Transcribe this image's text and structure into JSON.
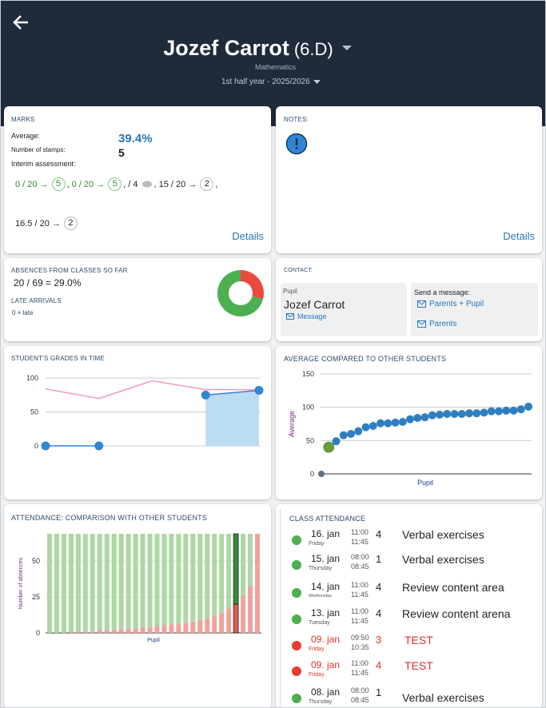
{
  "header": {
    "title": "Jozef Carrot",
    "class": "(6.D)",
    "subject": "Mathematics",
    "period": "1st half year - 2025/2026"
  },
  "marks": {
    "title": "MARKS",
    "average_label": "Average:",
    "average": "39.4%",
    "stamps_label": "Number of stamps:",
    "stamps": "5",
    "interim_label": "Interim assessment:",
    "separator": ",",
    "items": [
      {
        "score": "0 / 20 →",
        "grade": "5",
        "color": "#2e8b2e"
      },
      {
        "score": "0 / 20 →",
        "grade": "5",
        "color": "#2e8b2e"
      },
      {
        "score": "/ 4",
        "color": "#222"
      },
      {
        "score": "15 / 20 →",
        "grade": "2",
        "color": "#222"
      },
      {
        "score": "16.5 / 20 →",
        "grade": "2",
        "color": "#222"
      }
    ],
    "details": "Details"
  },
  "notes": {
    "title": "NOTES:",
    "details": "Details"
  },
  "absences": {
    "title": "ABSENCES FROM CLASSES SO FAR",
    "summary": "20 / 69 = 29.0%",
    "late_title": "LATE ARRIVALS",
    "late": "0 × late",
    "donut": {
      "type": "pie",
      "values": [
        20,
        49
      ],
      "colors": [
        "#ea4a3d",
        "#4caf50"
      ]
    }
  },
  "contact": {
    "title": "CONTACT:",
    "pupil_label": "Pupil",
    "pupil_name": "Jozef Carrot",
    "message": "Message",
    "send_label": "Send a message:",
    "parents_pupil": "Parents + Pupil",
    "parents": "Parents"
  },
  "grades_chart": {
    "type": "line",
    "title": "STUDENT'S GRADES IN TIME",
    "categories": [
      null,
      null,
      null,
      null,
      null
    ],
    "series": [
      {
        "color": "#f29cb8",
        "values": [
          84,
          70,
          96,
          83,
          83
        ]
      },
      {
        "color": "#2f86d6",
        "fill": "#bcdcf3",
        "values": [
          0,
          0,
          null,
          75,
          82
        ]
      }
    ],
    "ylim": [
      0,
      112
    ],
    "yticks": [
      0,
      50,
      100
    ],
    "grid": true
  },
  "average_chart": {
    "type": "scatter",
    "title": "AVERAGE COMPARED TO OTHER STUDENTS",
    "y_label": "Average",
    "x_label": "Pupil",
    "values": [
      0,
      40,
      49,
      58,
      60,
      64,
      70,
      72,
      76,
      76,
      77,
      78,
      82,
      84,
      85,
      88,
      89,
      90,
      90,
      90,
      91,
      91,
      92,
      94,
      94,
      95,
      95,
      97,
      101
    ],
    "colors": [
      "#5f7080",
      "#6a9a3a",
      "#2f7fc0",
      "#2f7fc0",
      "#2f7fc0",
      "#2f7fc0",
      "#2f7fc0",
      "#2f7fc0",
      "#2f7fc0",
      "#2f7fc0",
      "#2f7fc0",
      "#2f7fc0",
      "#2f7fc0",
      "#2f7fc0",
      "#2f7fc0",
      "#2f7fc0",
      "#2f7fc0",
      "#2f7fc0",
      "#2f7fc0",
      "#2f7fc0",
      "#2f7fc0",
      "#2f7fc0",
      "#2f7fc0",
      "#2f7fc0",
      "#2f7fc0",
      "#2f7fc0",
      "#2f7fc0",
      "#2f7fc0",
      "#2f7fc0"
    ],
    "ylim": [
      0,
      150
    ],
    "yticks": [
      0,
      50,
      100,
      150
    ],
    "grid": true
  },
  "attendance_chart": {
    "type": "bar",
    "stacked": true,
    "title": "ATTENDANCE: COMPARISON WITH OTHER STUDENTS",
    "y_label": "Number of absences",
    "x_label": "Pupil",
    "categories": [
      null,
      null,
      null,
      null,
      null,
      null,
      null,
      null,
      null,
      null,
      null,
      null,
      null,
      null,
      null,
      null,
      null,
      null,
      null,
      null,
      null,
      null,
      null,
      null,
      null,
      null,
      null,
      null,
      null,
      null
    ],
    "series": [
      {
        "color": "#eda39c",
        "values": [
          0,
          0,
          0,
          1,
          1,
          1,
          1,
          2,
          2,
          2,
          3,
          3,
          3,
          4,
          4,
          5,
          5,
          6,
          6,
          7,
          8,
          9,
          10,
          12,
          14,
          17,
          20,
          26,
          32,
          69
        ]
      },
      {
        "color": "#acd8a3",
        "values": [
          69,
          69,
          69,
          68,
          68,
          68,
          68,
          67,
          67,
          67,
          66,
          66,
          66,
          65,
          65,
          64,
          64,
          63,
          63,
          62,
          61,
          60,
          59,
          57,
          55,
          52,
          49,
          43,
          37,
          0
        ]
      }
    ],
    "highlight_index": 26,
    "highlight_colors": [
      "#e05a50",
      "#3a8a3a"
    ],
    "ylim": [
      0,
      69
    ],
    "yticks": [
      0,
      25,
      50
    ],
    "grid": true
  },
  "class_attendance": {
    "title": "CLASS ATTENDANCE",
    "entries": [
      {
        "date": "16. jan",
        "weekday": "Friday",
        "start": "11:00",
        "end": "11:45",
        "lesson": "4",
        "topic": "Verbal exercises",
        "status_color": "#4caf50",
        "text_color": "#222"
      },
      {
        "date": "15. jan",
        "weekday": "Thursday",
        "start": "08:00",
        "end": "08:45",
        "lesson": "1",
        "topic": "Verbal exercises",
        "status_color": "#4caf50",
        "text_color": "#222"
      },
      {
        "date": "14. jan",
        "weekday": "Wednesday",
        "start": "11:00",
        "end": "11:45",
        "lesson": "4",
        "topic": "Review content area",
        "status_color": "#4caf50",
        "text_color": "#222"
      },
      {
        "date": "13. jan",
        "weekday": "Tuesday",
        "start": "11:00",
        "end": "11:45",
        "lesson": "4",
        "topic": "Review content arena",
        "status_color": "#4caf50",
        "text_color": "#222"
      },
      {
        "date": "09. jan",
        "weekday": "Friday",
        "start": "09:50",
        "end": "10:35",
        "lesson": "3",
        "topic": "TEST",
        "status_color": "#ea3b30",
        "text_color": "#e0302a"
      },
      {
        "date": "09. jan",
        "weekday": "Friday",
        "start": "11:00",
        "end": "11:45",
        "lesson": "4",
        "topic": "TEST",
        "status_color": "#ea3b30",
        "text_color": "#e0302a"
      },
      {
        "date": "08. jan",
        "weekday": "Thursday",
        "start": "08:00",
        "end": "08:45",
        "lesson": "1",
        "topic": "Verbal exercises",
        "status_color": "#4caf50",
        "text_color": "#222"
      }
    ]
  }
}
